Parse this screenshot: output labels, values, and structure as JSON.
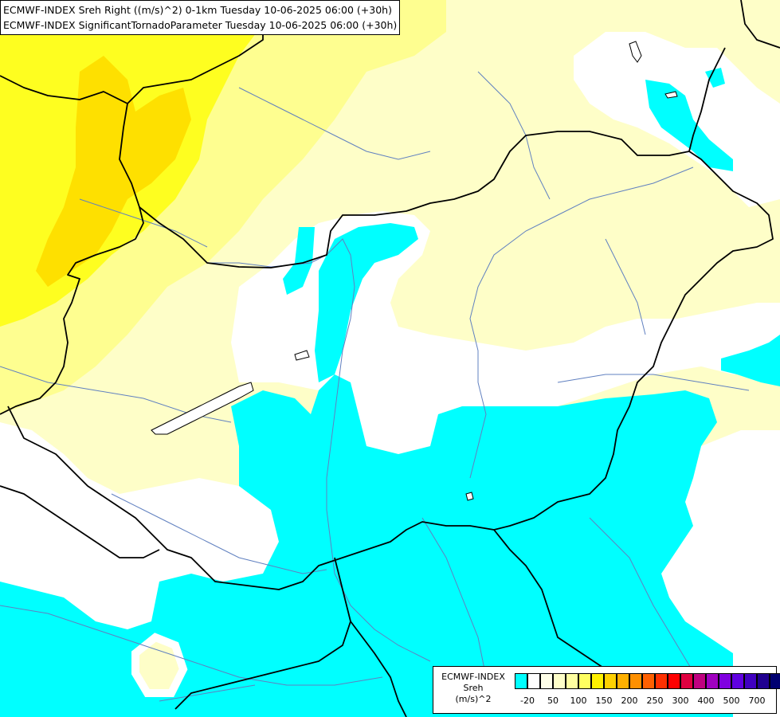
{
  "title": {
    "line1": "ECMWF-INDEX Sreh Right ((m/s)^2) 0-1km Tuesday 10-06-2025 06:00 (+30h)",
    "line2": "ECMWF-INDEX SignificantTornadoParameter Tuesday 10-06-2025 06:00 (+30h)"
  },
  "legend": {
    "line1": "ECMWF-INDEX",
    "line2": "Sreh",
    "line3": "(m/s)^2",
    "swatch_colors": [
      "#00ffff",
      "#ffffff",
      "#fefee8",
      "#fefec8",
      "#fefea0",
      "#fefe60",
      "#fef000",
      "#fed000",
      "#feb000",
      "#fe9000",
      "#fe6000",
      "#fe3000",
      "#fe0000",
      "#e00040",
      "#c00080",
      "#a000c0",
      "#8000e0",
      "#6000e0",
      "#4000c0",
      "#200090",
      "#000070"
    ],
    "labels": [
      "-20",
      "50",
      "100",
      "150",
      "200",
      "250",
      "300",
      "400",
      "500",
      "700"
    ]
  },
  "colors": {
    "cyan": "#00ffff",
    "white": "#ffffff",
    "pale_yellow": "#fefec8",
    "light_yellow": "#fefe90",
    "yellow": "#fefe20",
    "gold": "#fee000",
    "border": "#000000",
    "river": "#6080c0"
  }
}
